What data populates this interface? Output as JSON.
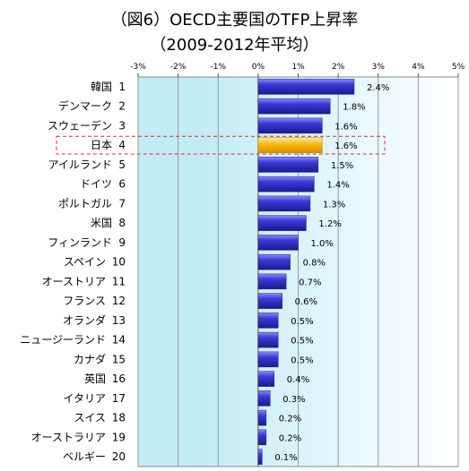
{
  "title": {
    "line1": "（図6）OECD主要国のTFP上昇率",
    "line2": "（2009-2012年平均）"
  },
  "colors": {
    "bar": "#3a3ad8",
    "bar_highlight": "#f5b400",
    "plot_bg_left": "#c2ecf5",
    "highlight_frame": "#cc3333"
  },
  "chart_data": {
    "type": "bar",
    "orientation": "horizontal",
    "title": "（図6）OECD主要国のTFP上昇率（2009-2012年平均）",
    "x_ticks": [
      "-3%",
      "-2%",
      "-1%",
      "0%",
      "1%",
      "2%",
      "3%",
      "4%",
      "5%"
    ],
    "xlim": [
      -3,
      5
    ],
    "grid": true,
    "categories": [
      "韓国",
      "デンマーク",
      "スウェーデン",
      "日本",
      "アイルランド",
      "ドイツ",
      "ポルトガル",
      "米国",
      "フィンランド",
      "スペイン",
      "オーストリア",
      "フランス",
      "オランダ",
      "ニュージーランド",
      "カナダ",
      "英国",
      "イタリア",
      "スイス",
      "オーストラリア",
      "ベルギー"
    ],
    "ranks": [
      "1",
      "2",
      "3",
      "4",
      "5",
      "6",
      "7",
      "8",
      "9",
      "10",
      "11",
      "12",
      "13",
      "14",
      "15",
      "16",
      "17",
      "18",
      "19",
      "20"
    ],
    "values": [
      2.4,
      1.8,
      1.6,
      1.6,
      1.5,
      1.4,
      1.3,
      1.2,
      1.0,
      0.8,
      0.7,
      0.6,
      0.5,
      0.5,
      0.5,
      0.4,
      0.3,
      0.2,
      0.2,
      0.1
    ],
    "value_labels": [
      "2.4%",
      "1.8%",
      "1.6%",
      "1.6%",
      "1.5%",
      "1.4%",
      "1.3%",
      "1.2%",
      "1.0%",
      "0.8%",
      "0.7%",
      "0.6%",
      "0.5%",
      "0.5%",
      "0.5%",
      "0.4%",
      "0.3%",
      "0.2%",
      "0.2%",
      "0.1%"
    ],
    "highlight": "日本"
  }
}
